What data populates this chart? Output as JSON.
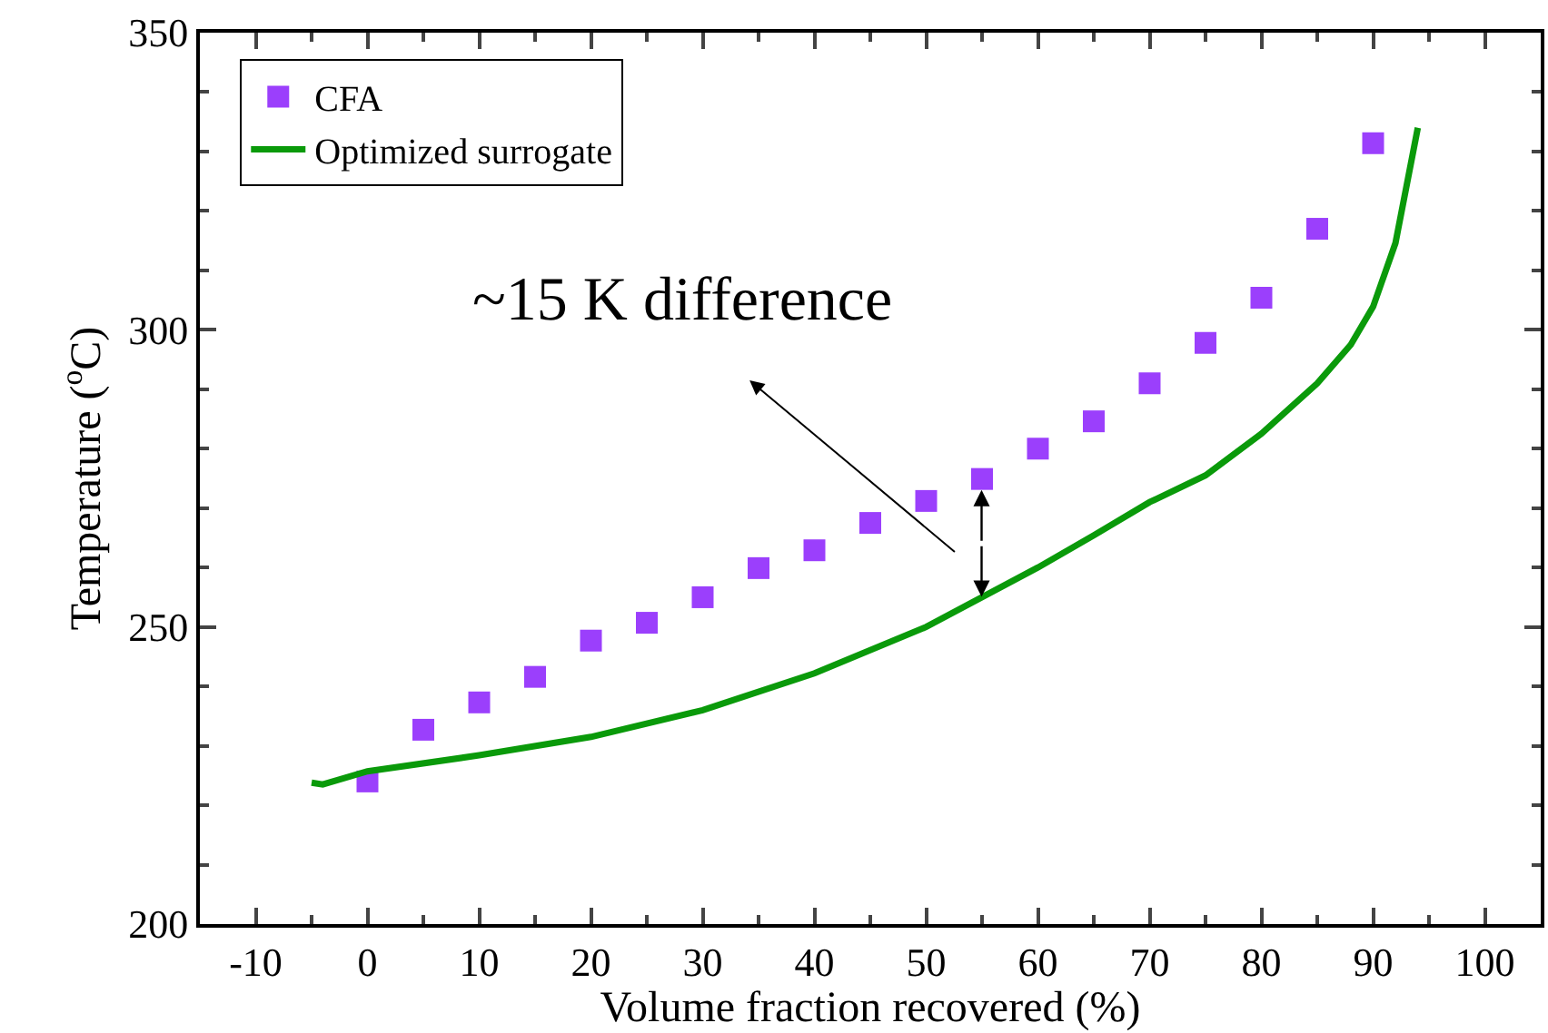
{
  "chart_data": {
    "type": "scatter",
    "xlabel": "Volume fraction recovered (%)",
    "ylabel": "Temperature ($^{o}$C)",
    "xlim": [
      -15,
      105
    ],
    "xticks": [
      -10,
      0,
      10,
      20,
      30,
      40,
      50,
      60,
      70,
      80,
      90,
      100
    ],
    "ylim": [
      200,
      350
    ],
    "yticks": [
      200,
      250,
      300,
      350
    ],
    "grid": false,
    "legend": "top left",
    "series": [
      {
        "name": "CFA",
        "type": "scatter",
        "marker": "square",
        "color": "#9b3ffc",
        "x": [
          0,
          5,
          10,
          15,
          20,
          25,
          30,
          35,
          40,
          45,
          50,
          55,
          60,
          64.5,
          65,
          70,
          75,
          80,
          85,
          90
        ],
        "values": [
          224,
          232.7,
          237.3,
          241.6,
          247.7,
          250.7,
          255,
          259.9,
          262.9,
          267.5,
          271.2,
          274.9,
          280,
          null,
          284.6,
          291,
          297.8,
          305.4,
          317,
          331.4
        ]
      },
      {
        "name": "Optimized surrogate",
        "type": "line",
        "marker": "none",
        "line_style": "solid",
        "color": "#0a9a0a",
        "x": [
          -5,
          -4,
          0,
          10,
          20,
          30,
          40,
          50,
          55,
          60,
          65,
          70,
          75,
          80,
          85,
          88,
          90,
          92,
          94
        ],
        "values": [
          223.8,
          223.5,
          225.7,
          228.4,
          231.5,
          236,
          242.2,
          250,
          255,
          260,
          265.4,
          271,
          275.5,
          282.5,
          291,
          297.5,
          303.9,
          314.6,
          334
        ]
      }
    ],
    "annotations": [
      "~15 K difference"
    ]
  }
}
